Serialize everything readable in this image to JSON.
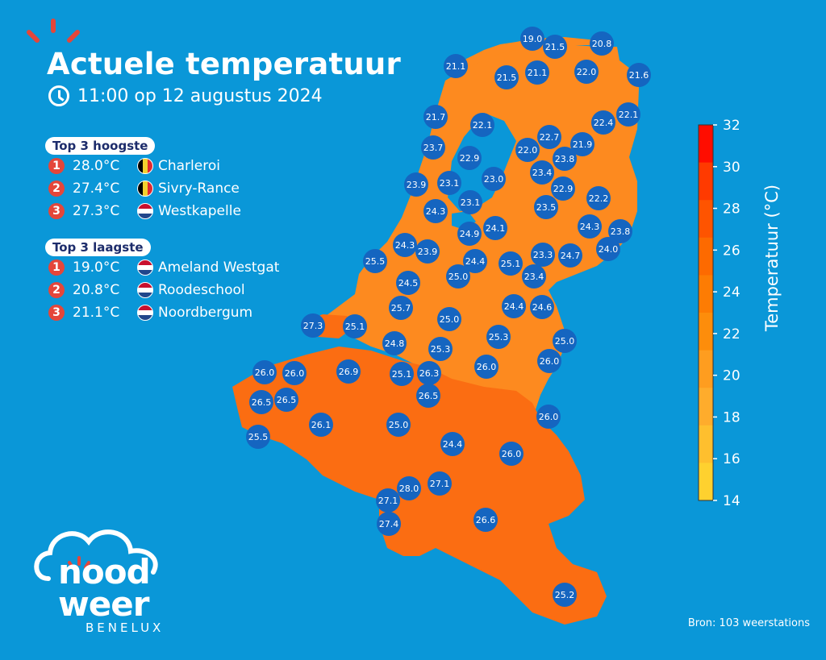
{
  "header": {
    "title": "Actuele temperatuur",
    "subtitle": "11:00 op 12 augustus 2024"
  },
  "top_highest": {
    "label": "Top 3 hoogste",
    "items": [
      {
        "rank": "1",
        "temp": "28.0°C",
        "flag": "be",
        "station": "Charleroi"
      },
      {
        "rank": "2",
        "temp": "27.4°C",
        "flag": "be",
        "station": "Sivry-Rance"
      },
      {
        "rank": "3",
        "temp": "27.3°C",
        "flag": "nl",
        "station": "Westkapelle"
      }
    ]
  },
  "top_lowest": {
    "label": "Top 3 laagste",
    "items": [
      {
        "rank": "1",
        "temp": "19.0°C",
        "flag": "nl",
        "station": "Ameland Westgat"
      },
      {
        "rank": "2",
        "temp": "20.8°C",
        "flag": "nl",
        "station": "Roodeschool"
      },
      {
        "rank": "3",
        "temp": "21.1°C",
        "flag": "nl",
        "station": "Noordbergum"
      }
    ]
  },
  "colorbar": {
    "title": "Temperatuur (°C)",
    "ticks": [
      "32",
      "30",
      "28",
      "26",
      "24",
      "22",
      "20",
      "18",
      "16",
      "14"
    ],
    "colors": [
      "#ff0d00",
      "#ff3a00",
      "#fe5400",
      "#fd6a00",
      "#fd7c03",
      "#fd8d0b",
      "#fe9d1f",
      "#feac2c",
      "#febf2e",
      "#fed12f"
    ]
  },
  "stations": [
    "19.0",
    "21.5",
    "20.8",
    "21.1",
    "21.5",
    "21.1",
    "22.0",
    "21.6",
    "21.7",
    "22.1",
    "22.4",
    "22.1",
    "22.7",
    "21.9",
    "23.7",
    "22.9",
    "22.0",
    "23.8",
    "23.0",
    "23.4",
    "23.9",
    "23.1",
    "22.9",
    "22.2",
    "23.1",
    "24.3",
    "23.5",
    "24.1",
    "24.9",
    "24.3",
    "23.8",
    "24.3",
    "24.0",
    "25.5",
    "23.9",
    "24.4",
    "25.1",
    "23.3",
    "24.7",
    "25.0",
    "23.4",
    "24.5",
    "25.7",
    "24.4",
    "24.6",
    "27.3",
    "25.1",
    "25.0",
    "25.3",
    "24.8",
    "25.3",
    "25.0",
    "26.0",
    "26.0",
    "26.0",
    "26.0",
    "26.9",
    "25.1",
    "26.3",
    "26.5",
    "26.5",
    "26.5",
    "26.1",
    "26.0",
    "25.0",
    "25.5",
    "24.4",
    "26.0",
    "27.1",
    "28.0",
    "27.1",
    "27.4",
    "26.6",
    "25.2"
  ],
  "logo": {
    "line1": "nood",
    "line2": "weer",
    "sub": "BENELUX",
    "accent": "#e4463a"
  },
  "source": "Bron: 103 weerstations",
  "colors": {
    "background": "#0a97d8",
    "land": "#fb6d12",
    "land_north": "#fd8a1f",
    "marker": "#1565c0",
    "accent": "#e4463a"
  }
}
